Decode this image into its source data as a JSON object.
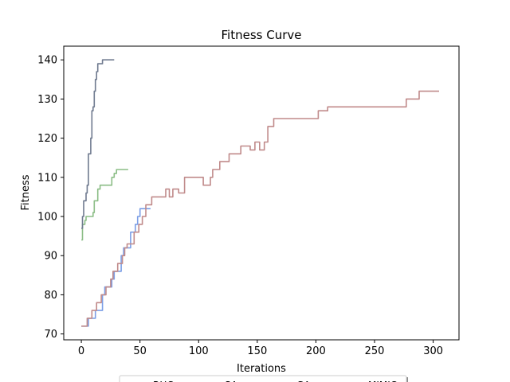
{
  "chart_data": {
    "type": "line",
    "title": "Fitness Curve",
    "xlabel": "Iterations",
    "ylabel": "Fitness",
    "xlim": [
      -15,
      322
    ],
    "ylim": [
      68.5,
      143.5
    ],
    "xticks": [
      0,
      50,
      100,
      150,
      200,
      250,
      300
    ],
    "yticks": [
      70,
      80,
      90,
      100,
      110,
      120,
      130,
      140
    ],
    "grid": false,
    "legend_placement": "bottom-center",
    "series": [
      {
        "name": "RHC",
        "color": "#7b9ee6",
        "x": [
          0,
          3,
          5,
          6,
          8,
          10,
          12,
          14,
          16,
          18,
          20,
          22,
          24,
          26,
          28,
          30,
          32,
          34,
          36,
          38,
          40,
          42,
          44,
          46,
          48,
          50,
          55,
          59
        ],
        "y": [
          72,
          72,
          72,
          74,
          74,
          74,
          76,
          76,
          76,
          80,
          82,
          82,
          82,
          84,
          86,
          86,
          86,
          90,
          92,
          92,
          92,
          96,
          96,
          98,
          100,
          102,
          102,
          102
        ]
      },
      {
        "name": "SA",
        "color": "#c08a8a",
        "x": [
          0,
          3,
          5,
          7,
          9,
          11,
          13,
          15,
          17,
          19,
          21,
          23,
          25,
          27,
          29,
          31,
          33,
          35,
          37,
          39,
          41,
          43,
          45,
          47,
          49,
          52,
          55,
          60,
          65,
          68,
          72,
          75,
          78,
          80,
          83,
          86,
          88,
          92,
          96,
          100,
          104,
          106,
          110,
          112,
          114,
          118,
          122,
          126,
          130,
          136,
          141,
          144,
          148,
          150,
          152,
          156,
          159,
          162,
          164,
          167,
          172,
          180,
          190,
          202,
          210,
          220,
          230,
          240,
          250,
          260,
          270,
          277,
          283,
          288,
          295,
          305
        ],
        "y": [
          72,
          72,
          74,
          74,
          76,
          76,
          78,
          78,
          80,
          80,
          82,
          82,
          84,
          86,
          86,
          88,
          88,
          90,
          92,
          93,
          93,
          93,
          96,
          96,
          98,
          100,
          103,
          105,
          105,
          105,
          107,
          105,
          107,
          107,
          106,
          106,
          110,
          110,
          110,
          110,
          108,
          108,
          110,
          112,
          112,
          114,
          114,
          116,
          116,
          118,
          118,
          117,
          119,
          119,
          117,
          119,
          123,
          123,
          125,
          125,
          125,
          125,
          125,
          127,
          128,
          128,
          128,
          128,
          128,
          128,
          128,
          130,
          130,
          132,
          132,
          132
        ]
      },
      {
        "name": "GA",
        "color": "#8bbd86",
        "x": [
          0,
          1,
          2,
          3,
          4,
          5,
          6,
          7,
          8,
          9,
          10,
          11,
          12,
          13,
          14,
          15,
          16,
          17,
          18,
          20,
          22,
          24,
          26,
          28,
          30,
          35,
          40
        ],
        "y": [
          94,
          98,
          98,
          99,
          100,
          100,
          100,
          100,
          100,
          100,
          101,
          104,
          104,
          104,
          107,
          107,
          108,
          108,
          108,
          108,
          108,
          108,
          110,
          111,
          112,
          112,
          112
        ]
      },
      {
        "name": "MIMIC",
        "color": "#6f7a8f",
        "x": [
          0,
          1,
          2,
          3,
          4,
          5,
          6,
          7,
          8,
          9,
          10,
          11,
          12,
          13,
          14,
          15,
          16,
          17,
          18,
          19,
          20,
          22,
          24,
          26,
          28
        ],
        "y": [
          97,
          100,
          104,
          104,
          106,
          108,
          116,
          116,
          120,
          127,
          128,
          132,
          135,
          137,
          139,
          139,
          139,
          139,
          140,
          140,
          140,
          140,
          140,
          140,
          140
        ]
      }
    ]
  }
}
